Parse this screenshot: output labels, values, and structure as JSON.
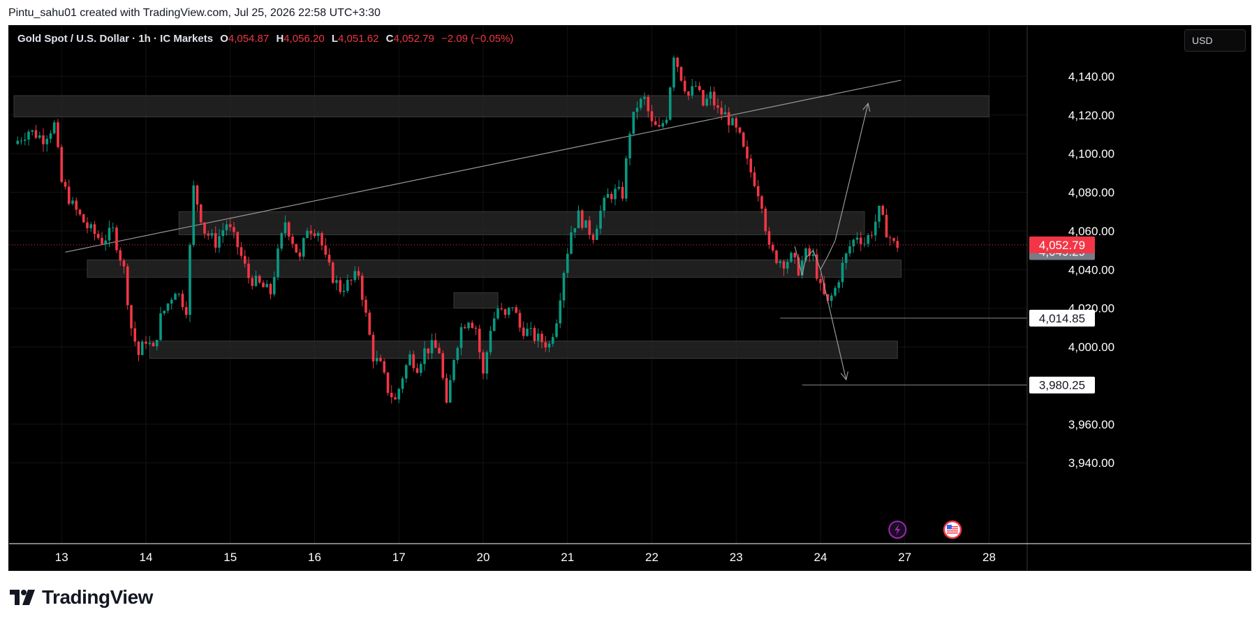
{
  "header": {
    "text": "Pintu_sahu01 created with TradingView.com, Jul 25, 2026 22:58 UTC+3:30"
  },
  "legend": {
    "symbol": "Gold Spot / U.S. Dollar · 1h · IC Markets",
    "o_label": "O",
    "o_value": "4,054.87",
    "h_label": "H",
    "h_value": "4,056.20",
    "l_label": "L",
    "l_value": "4,051.62",
    "c_label": "C",
    "c_value": "4,052.79",
    "change": "−2.09 (−0.05%)"
  },
  "currency": "USD",
  "footer": {
    "brand": "TradingView"
  },
  "colors": {
    "up": "#089981",
    "down": "#f23645",
    "background": "#000000",
    "axis_text": "#ffffff"
  },
  "chart_data": {
    "type": "candlestick",
    "symbol": "Gold Spot / U.S. Dollar",
    "interval": "1h",
    "ylim": [
      3935,
      4160
    ],
    "y_ticks": [
      {
        "v": 3940,
        "label": "3,940.00"
      },
      {
        "v": 3960,
        "label": "3,960.00"
      },
      {
        "v": 4000,
        "label": "4,000.00"
      },
      {
        "v": 4020,
        "label": "4,020.00"
      },
      {
        "v": 4040,
        "label": "4,040.00"
      },
      {
        "v": 4060,
        "label": "4,060.00"
      },
      {
        "v": 4080,
        "label": "4,080.00"
      },
      {
        "v": 4100,
        "label": "4,100.00"
      },
      {
        "v": 4120,
        "label": "4,120.00"
      },
      {
        "v": 4140,
        "label": "4,140.00"
      }
    ],
    "x_ticks": [
      {
        "pos": 1,
        "label": "13"
      },
      {
        "pos": 24,
        "label": "14"
      },
      {
        "pos": 47,
        "label": "15"
      },
      {
        "pos": 70,
        "label": "16"
      },
      {
        "pos": 93,
        "label": "17"
      },
      {
        "pos": 116,
        "label": "20"
      },
      {
        "pos": 139,
        "label": "21"
      },
      {
        "pos": 162,
        "label": "22"
      },
      {
        "pos": 185,
        "label": "23"
      },
      {
        "pos": 208,
        "label": "24"
      },
      {
        "pos": 231,
        "label": "27"
      },
      {
        "pos": 254,
        "label": "28"
      }
    ],
    "path": [
      [
        -12,
        4105
      ],
      [
        -8,
        4112
      ],
      [
        -4,
        4108
      ],
      [
        -1,
        4115
      ],
      [
        0,
        4100
      ],
      [
        1,
        4085
      ],
      [
        4,
        4073
      ],
      [
        8,
        4062
      ],
      [
        12,
        4055
      ],
      [
        15,
        4060
      ],
      [
        18,
        4040
      ],
      [
        20,
        4010
      ],
      [
        22,
        3996
      ],
      [
        24,
        4004
      ],
      [
        26,
        3998
      ],
      [
        28,
        4015
      ],
      [
        32,
        4030
      ],
      [
        35,
        4020
      ],
      [
        37,
        4082
      ],
      [
        40,
        4060
      ],
      [
        43,
        4054
      ],
      [
        46,
        4064
      ],
      [
        49,
        4052
      ],
      [
        52,
        4036
      ],
      [
        55,
        4032
      ],
      [
        58,
        4028
      ],
      [
        60,
        4048
      ],
      [
        62,
        4065
      ],
      [
        64,
        4055
      ],
      [
        66,
        4045
      ],
      [
        68,
        4062
      ],
      [
        71,
        4060
      ],
      [
        73,
        4045
      ],
      [
        75,
        4036
      ],
      [
        77,
        4030
      ],
      [
        80,
        4034
      ],
      [
        82,
        4038
      ],
      [
        84,
        4016
      ],
      [
        86,
        3995
      ],
      [
        88,
        3990
      ],
      [
        90,
        3978
      ],
      [
        92,
        3972
      ],
      [
        94,
        3985
      ],
      [
        96,
        3995
      ],
      [
        98,
        3990
      ],
      [
        100,
        3998
      ],
      [
        102,
        4000
      ],
      [
        104,
        3998
      ],
      [
        106,
        3968
      ],
      [
        108,
        3995
      ],
      [
        110,
        4010
      ],
      [
        112,
        4015
      ],
      [
        114,
        4010
      ],
      [
        116,
        3985
      ],
      [
        118,
        4010
      ],
      [
        120,
        4020
      ],
      [
        122,
        4015
      ],
      [
        124,
        4022
      ],
      [
        126,
        4010
      ],
      [
        128,
        4008
      ],
      [
        130,
        4005
      ],
      [
        132,
        4003
      ],
      [
        134,
        4001
      ],
      [
        136,
        4015
      ],
      [
        138,
        4040
      ],
      [
        140,
        4060
      ],
      [
        142,
        4068
      ],
      [
        144,
        4062
      ],
      [
        146,
        4058
      ],
      [
        148,
        4070
      ],
      [
        150,
        4078
      ],
      [
        152,
        4080
      ],
      [
        154,
        4079
      ],
      [
        156,
        4112
      ],
      [
        158,
        4125
      ],
      [
        160,
        4128
      ],
      [
        162,
        4115
      ],
      [
        164,
        4112
      ],
      [
        166,
        4120
      ],
      [
        168,
        4152
      ],
      [
        170,
        4140
      ],
      [
        172,
        4130
      ],
      [
        174,
        4135
      ],
      [
        176,
        4125
      ],
      [
        178,
        4130
      ],
      [
        180,
        4122
      ],
      [
        182,
        4120
      ],
      [
        184,
        4115
      ],
      [
        186,
        4108
      ],
      [
        188,
        4095
      ],
      [
        190,
        4086
      ],
      [
        192,
        4075
      ],
      [
        194,
        4050
      ],
      [
        196,
        4046
      ],
      [
        198,
        4044
      ],
      [
        200,
        4046
      ],
      [
        202,
        4040
      ],
      [
        204,
        4048
      ],
      [
        206,
        4046
      ],
      [
        208,
        4030
      ],
      [
        210,
        4022
      ],
      [
        212,
        4030
      ],
      [
        214,
        4042
      ],
      [
        216,
        4052
      ],
      [
        218,
        4058
      ],
      [
        220,
        4054
      ],
      [
        222,
        4060
      ],
      [
        224,
        4070
      ],
      [
        226,
        4060
      ],
      [
        228,
        4053
      ],
      [
        229,
        4052.79
      ]
    ],
    "zones": [
      {
        "x1": -12,
        "x2": 254,
        "y1": 4119,
        "y2": 4130
      },
      {
        "x1": 33,
        "x2": 220,
        "y1": 4058,
        "y2": 4070
      },
      {
        "x1": 8,
        "x2": 230,
        "y1": 4036,
        "y2": 4045
      },
      {
        "x1": 25,
        "x2": 229,
        "y1": 3994,
        "y2": 4003
      },
      {
        "x1": 108,
        "x2": 120,
        "y1": 4020,
        "y2": 4028
      }
    ],
    "trendline": {
      "x1": 2,
      "y1": 4049,
      "x2": 230,
      "y2": 4138
    },
    "price_lines": [
      {
        "x_start": 197,
        "v": 4014.85,
        "label": "4,014.85"
      },
      {
        "x_start": 203,
        "v": 3980.25,
        "label": "3,980.25"
      }
    ],
    "projection": {
      "zigzag": [
        [
          201,
          4052
        ],
        [
          203,
          4037
        ],
        [
          204,
          4046
        ],
        [
          206,
          4050
        ],
        [
          208,
          4040
        ],
        [
          210,
          4047
        ],
        [
          212,
          4055
        ]
      ],
      "arrow_up": {
        "from": [
          212,
          4055
        ],
        "to": [
          221,
          4126
        ]
      },
      "arrow_down": {
        "from": [
          208,
          4040
        ],
        "to": [
          215,
          3983
        ]
      }
    },
    "last_price": {
      "v": 4052.79,
      "label": "4,052.79"
    },
    "prev_close": {
      "v": 4049.29,
      "label": "4,049.29"
    },
    "event_icons": [
      {
        "pos": 229,
        "kind": "lightning-icon"
      },
      {
        "pos": 244,
        "kind": "us-flag-icon"
      }
    ]
  }
}
